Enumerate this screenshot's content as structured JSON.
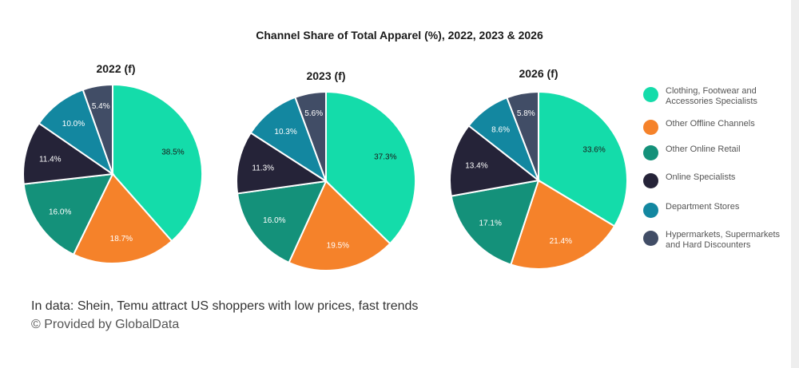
{
  "chart_data": {
    "type": "pie",
    "title": "Channel Share of Total Apparel (%), 2022, 2023 & 2026",
    "categories": [
      "Clothing, Footwear and Accessories Specialists",
      "Other Offline Channels",
      "Other Online Retail",
      "Online Specialists",
      "Department Stores",
      "Hypermarkets, Supermarkets and Hard Discounters"
    ],
    "colors": [
      "#14dcaa",
      "#f5822a",
      "#14917a",
      "#252338",
      "#1387a0",
      "#414d66"
    ],
    "pies": [
      {
        "title": "2022 (f)",
        "values": [
          38.5,
          18.7,
          16.0,
          11.4,
          10.0,
          5.4
        ],
        "labels": [
          "38.5%",
          "18.7%",
          "16.0%",
          "11.4%",
          "10.0%",
          "5.4%"
        ]
      },
      {
        "title": "2023 (f)",
        "values": [
          37.3,
          19.5,
          16.0,
          11.3,
          10.3,
          5.6
        ],
        "labels": [
          "37.3%",
          "19.5%",
          "16.0%",
          "11.3%",
          "10.3%",
          "5.6%"
        ]
      },
      {
        "title": "2026 (f)",
        "values": [
          33.6,
          21.4,
          17.1,
          13.4,
          8.6,
          5.8
        ],
        "labels": [
          "33.6%",
          "21.4%",
          "17.1%",
          "13.4%",
          "8.6%",
          "5.8%"
        ]
      }
    ],
    "legend_position": "right"
  },
  "legend": {
    "items": [
      {
        "label": "Clothing, Footwear and Accessories Specialists",
        "color": "#14dcaa"
      },
      {
        "label": "Other Offline Channels",
        "color": "#f5822a"
      },
      {
        "label": "Other Online Retail",
        "color": "#14917a"
      },
      {
        "label": "Online Specialists",
        "color": "#252338"
      },
      {
        "label": "Department Stores",
        "color": "#1387a0"
      },
      {
        "label": "Hypermarkets, Supermarkets and Hard Discounters",
        "color": "#414d66"
      }
    ]
  },
  "caption": {
    "text": "In data: Shein, Temu attract US shoppers with low prices, fast trends",
    "provider": "© Provided by GlobalData"
  }
}
